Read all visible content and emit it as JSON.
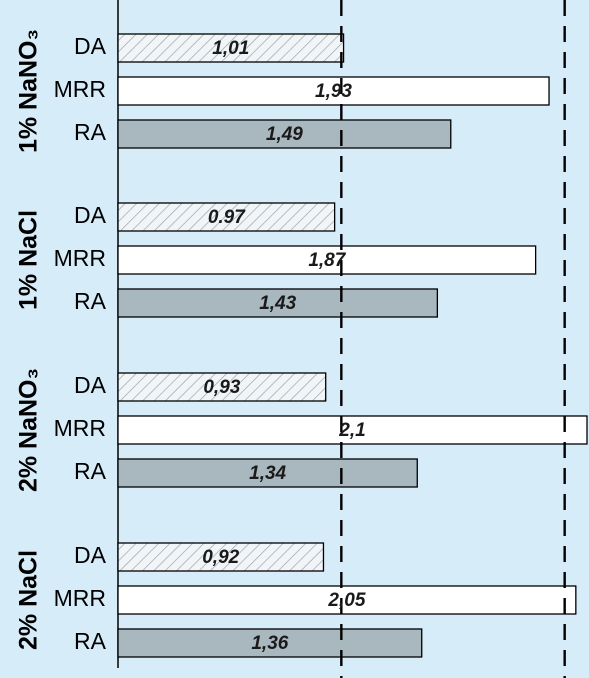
{
  "chart_data": {
    "type": "bar",
    "orientation": "horizontal",
    "groups": [
      {
        "label": "1% NaNO₃",
        "bars": [
          {
            "category": "DA",
            "value": 1.01,
            "label": "1,01"
          },
          {
            "category": "MRR",
            "value": 1.93,
            "label": "1,93"
          },
          {
            "category": "RA",
            "value": 1.49,
            "label": "1,49"
          }
        ]
      },
      {
        "label": "1% NaCl",
        "bars": [
          {
            "category": "DA",
            "value": 0.97,
            "label": "0.97"
          },
          {
            "category": "MRR",
            "value": 1.87,
            "label": "1,87"
          },
          {
            "category": "RA",
            "value": 1.43,
            "label": "1,43"
          }
        ]
      },
      {
        "label": "2% NaNO₃",
        "bars": [
          {
            "category": "DA",
            "value": 0.93,
            "label": "0,93"
          },
          {
            "category": "MRR",
            "value": 2.1,
            "label": "2,1"
          },
          {
            "category": "RA",
            "value": 1.34,
            "label": "1,34"
          }
        ]
      },
      {
        "label": "2% NaCl",
        "bars": [
          {
            "category": "DA",
            "value": 0.92,
            "label": "0,92"
          },
          {
            "category": "MRR",
            "value": 2.05,
            "label": "2,05"
          },
          {
            "category": "RA",
            "value": 1.36,
            "label": "1,36"
          }
        ]
      }
    ],
    "reference_lines": [
      1,
      2
    ],
    "xlim": [
      0,
      2.1
    ],
    "grid": false,
    "legend": "none",
    "colors": {
      "background": "#d7ecf9",
      "DA": "#f1f5f7",
      "DA_hatch": "#9aa6ae",
      "MRR": "#ffffff",
      "RA": "#a9b8bf",
      "outline": "#000000"
    }
  }
}
